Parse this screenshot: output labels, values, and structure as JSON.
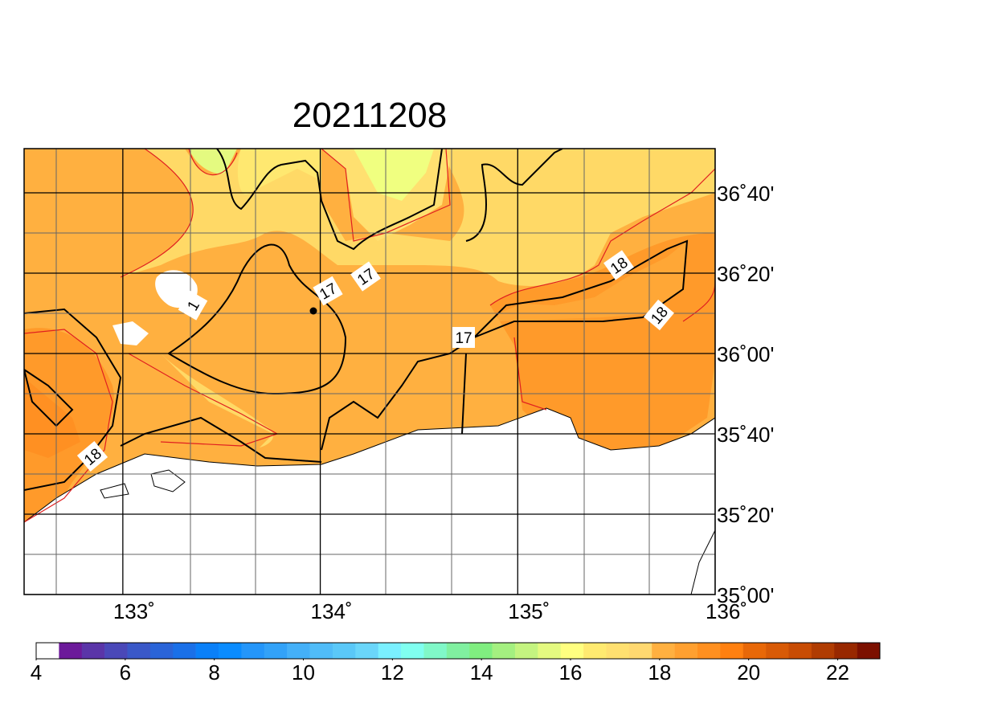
{
  "title": "20211208",
  "map": {
    "lon_ticks": [
      {
        "value": 133,
        "label": "133˚"
      },
      {
        "value": 134,
        "label": "134˚"
      },
      {
        "value": 135,
        "label": "135˚"
      },
      {
        "value": 136,
        "label": "136˚"
      }
    ],
    "lat_ticks": [
      {
        "value": 36.6667,
        "label": "36˚40'"
      },
      {
        "value": 36.3333,
        "label": "36˚20'"
      },
      {
        "value": 36,
        "label": "36˚00'"
      },
      {
        "value": 35.6667,
        "label": "35˚40'"
      },
      {
        "value": 35.3333,
        "label": "35˚20'"
      },
      {
        "value": 35,
        "label": "35˚00'"
      }
    ],
    "contour_labels": [
      "17",
      "17",
      "17",
      "18",
      "18",
      "18",
      "1"
    ]
  },
  "colorbar": {
    "ticks": [
      4,
      6,
      8,
      10,
      12,
      14,
      16,
      18,
      20,
      22
    ],
    "colors": [
      "#ffffff",
      "#6c1a9a",
      "#5a35a8",
      "#4a48b8",
      "#3a58c8",
      "#2a64d8",
      "#1a70e8",
      "#0a80f8",
      "#0a8cff",
      "#2496fa",
      "#32a2f8",
      "#44b0f8",
      "#50bcf8",
      "#5ac8f8",
      "#6ad6fa",
      "#7af0ff",
      "#80fff0",
      "#80f8c8",
      "#80f0a0",
      "#80ee80",
      "#a4f080",
      "#c4f480",
      "#e4fa80",
      "#ffff80",
      "#ffea70",
      "#ffe070",
      "#ffd870",
      "#ffb040",
      "#ffa030",
      "#ff9020",
      "#ff8010",
      "#e86808",
      "#d85a06",
      "#c84c04",
      "#b03c02",
      "#982800",
      "#7c1000"
    ]
  }
}
